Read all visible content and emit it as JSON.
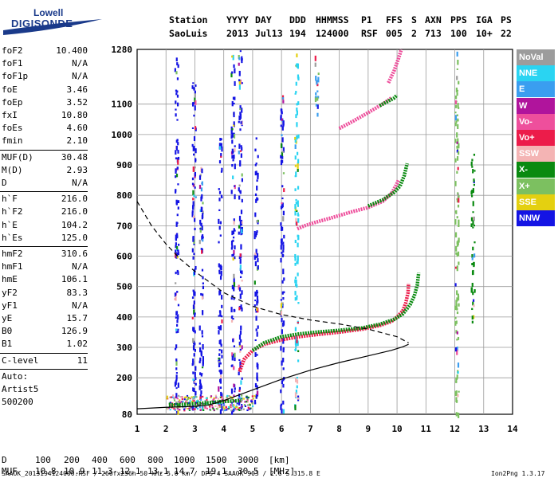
{
  "logo": {
    "line1": "Lowell",
    "line2": "DIGISONDE"
  },
  "header": {
    "row1": [
      "Station",
      "YYYY",
      "DAY",
      "DDD",
      "HHMMSS",
      "P1",
      "FFS",
      "S",
      "AXN",
      "PPS",
      "IGA",
      "PS"
    ],
    "row2": [
      "SaoLuis",
      "2013",
      "Jul13",
      "194",
      "124000",
      "RSF",
      "005",
      "2",
      "713",
      "100",
      "10+",
      "22"
    ]
  },
  "params": {
    "group1": [
      {
        "name": "foF2",
        "value": "10.400"
      },
      {
        "name": "foF1",
        "value": "N/A"
      },
      {
        "name": "foF1p",
        "value": "N/A"
      },
      {
        "name": "foE",
        "value": "3.46"
      },
      {
        "name": "foEp",
        "value": "3.52"
      },
      {
        "name": "fxI",
        "value": "10.80"
      },
      {
        "name": "foEs",
        "value": "4.60"
      },
      {
        "name": "fmin",
        "value": "2.10"
      }
    ],
    "group2": [
      {
        "name": "MUF(D)",
        "value": "30.48"
      },
      {
        "name": "M(D)",
        "value": "2.93"
      },
      {
        "name": "D",
        "value": "N/A"
      }
    ],
    "group3": [
      {
        "name": "h`F",
        "value": "216.0"
      },
      {
        "name": "h`F2",
        "value": "216.0"
      },
      {
        "name": "h`E",
        "value": "104.2"
      },
      {
        "name": "h`Es",
        "value": "125.0"
      }
    ],
    "group4": [
      {
        "name": "hmF2",
        "value": "310.6"
      },
      {
        "name": "hmF1",
        "value": "N/A"
      },
      {
        "name": "hmE",
        "value": "106.1"
      },
      {
        "name": "yF2",
        "value": "83.3"
      },
      {
        "name": "yF1",
        "value": "N/A"
      },
      {
        "name": "yE",
        "value": "15.7"
      },
      {
        "name": "B0",
        "value": "126.9"
      },
      {
        "name": "B1",
        "value": "1.02"
      }
    ],
    "clevel": {
      "name": "C-level",
      "value": "11"
    },
    "auto": [
      "Auto:",
      "Artist5",
      "500200"
    ]
  },
  "legend": [
    {
      "label": "NoVal",
      "color": "#9c9c9c"
    },
    {
      "label": "NNE",
      "color": "#2ad4f2"
    },
    {
      "label": "E",
      "color": "#3a9ef0"
    },
    {
      "label": "W",
      "color": "#b0149c"
    },
    {
      "label": "Vo-",
      "color": "#ee4f9c"
    },
    {
      "label": "Vo+",
      "color": "#ec1c4a"
    },
    {
      "label": "SSW",
      "color": "#f4b4b4"
    },
    {
      "label": "X-",
      "color": "#0a8a10"
    },
    {
      "label": "X+",
      "color": "#7cc060"
    },
    {
      "label": "SSE",
      "color": "#e4d010"
    },
    {
      "label": "NNW",
      "color": "#1414e4"
    }
  ],
  "footer": {
    "d_row": [
      "D",
      "100",
      "200",
      "400",
      "600",
      "800",
      "1000",
      "1500",
      "3000",
      "[km]"
    ],
    "muf_row": [
      "MUF",
      "10.8",
      "10.9",
      "11.3",
      "12.1",
      "13.1",
      "14.7",
      "19.1",
      "30.5",
      "[MHz]"
    ],
    "meta": "SAAOK_2013194124000.RSF / 260fx256h 50 kHz 5.0 km / DPS-4 SAAOK 903 / 2.6 S 315.8 E",
    "version": "Ion2Png 1.3.17"
  },
  "chart_data": {
    "type": "scatter",
    "xlabel": "",
    "ylabel": "",
    "xlim": [
      1,
      14
    ],
    "ylim": [
      80,
      1280
    ],
    "x_ticks": [
      1,
      2,
      3,
      4,
      5,
      6,
      7,
      8,
      9,
      10,
      11,
      12,
      13,
      14
    ],
    "y_ticks": [
      80,
      200,
      300,
      400,
      500,
      600,
      700,
      800,
      900,
      1000,
      1100,
      1280
    ],
    "traces": [
      {
        "name": "o_trace_F",
        "color": "#ec1c4a",
        "x": [
          4.55,
          4.7,
          5.0,
          5.4,
          6.0,
          6.6,
          7.2,
          8.0,
          8.8,
          9.4,
          9.8,
          10.0,
          10.2,
          10.3,
          10.38,
          10.4
        ],
        "y": [
          220,
          260,
          290,
          310,
          325,
          335,
          342,
          350,
          360,
          372,
          385,
          400,
          420,
          445,
          480,
          510
        ]
      },
      {
        "name": "x_trace_F",
        "color": "#0a8a10",
        "x": [
          5.0,
          5.4,
          6.0,
          6.6,
          7.2,
          8.0,
          8.8,
          9.4,
          9.9,
          10.2,
          10.45,
          10.6,
          10.7,
          10.75
        ],
        "y": [
          290,
          315,
          335,
          344,
          350,
          356,
          364,
          376,
          392,
          410,
          440,
          470,
          505,
          545
        ]
      },
      {
        "name": "o_trace_2hop",
        "color": "#ee4f9c",
        "x": [
          6.55,
          6.8,
          7.2,
          7.8,
          8.4,
          9.0,
          9.5,
          9.8,
          9.95,
          10.05
        ],
        "y": [
          690,
          700,
          712,
          728,
          745,
          760,
          780,
          805,
          830,
          850
        ]
      },
      {
        "name": "x_trace_2hop",
        "color": "#0a8a10",
        "x": [
          9.0,
          9.5,
          9.9,
          10.1,
          10.25,
          10.35
        ],
        "y": [
          765,
          785,
          810,
          830,
          865,
          905
        ]
      },
      {
        "name": "o_trace_3hop",
        "color": "#ee4f9c",
        "x": [
          8.0,
          8.5,
          9.0,
          9.5,
          9.8
        ],
        "y": [
          1020,
          1045,
          1072,
          1100,
          1120
        ]
      },
      {
        "name": "o_trace_3hop_tail",
        "color": "#ee4f9c",
        "x": [
          9.7,
          9.9,
          10.05,
          10.15
        ],
        "y": [
          1170,
          1210,
          1250,
          1280
        ]
      },
      {
        "name": "x_trace_3hop",
        "color": "#0a8a10",
        "x": [
          9.4,
          9.7,
          9.9,
          10.0
        ],
        "y": [
          1095,
          1110,
          1120,
          1130
        ]
      },
      {
        "name": "Es_trace",
        "color": "#0a8a10",
        "x": [
          2.1,
          2.5,
          3.0,
          3.5,
          4.0,
          4.6
        ],
        "y": [
          110,
          112,
          115,
          118,
          122,
          125
        ]
      }
    ],
    "profile_solid": {
      "x": [
        1.0,
        2.0,
        3.0,
        3.46,
        4.0,
        5.0,
        6.0,
        7.0,
        8.0,
        9.0,
        9.8,
        10.2,
        10.4
      ],
      "y": [
        98,
        103,
        106,
        110,
        125,
        160,
        195,
        225,
        250,
        272,
        290,
        302,
        310
      ]
    },
    "profile_dashed": {
      "x": [
        1.0,
        1.5,
        2.0,
        2.5,
        3.0,
        3.5,
        4.0,
        5.0,
        6.0,
        7.0,
        8.0,
        9.0,
        10.0,
        10.4
      ],
      "y": [
        780,
        700,
        640,
        590,
        550,
        515,
        480,
        435,
        408,
        390,
        377,
        360,
        335,
        315
      ]
    },
    "scatter_columns": [
      {
        "x": 2.35,
        "y0": 90,
        "y1": 1270,
        "color": "#1414e4"
      },
      {
        "x": 2.95,
        "y0": 90,
        "y1": 1200,
        "color": "#1414e4"
      },
      {
        "x": 3.2,
        "y0": 90,
        "y1": 900,
        "color": "#1414e4"
      },
      {
        "x": 3.85,
        "y0": 90,
        "y1": 1000,
        "color": "#1414e4"
      },
      {
        "x": 4.3,
        "y0": 90,
        "y1": 1280,
        "color": "#1414e4"
      },
      {
        "x": 4.55,
        "y0": 90,
        "y1": 1280,
        "color": "#1414e4"
      },
      {
        "x": 5.1,
        "y0": 90,
        "y1": 1000,
        "color": "#1414e4"
      },
      {
        "x": 6.0,
        "y0": 90,
        "y1": 1150,
        "color": "#1414e4"
      },
      {
        "x": 6.5,
        "y0": 90,
        "y1": 1270,
        "color": "#2ad4f2"
      },
      {
        "x": 7.2,
        "y0": 1050,
        "y1": 1270,
        "color": "#3a9ef0"
      },
      {
        "x": 12.05,
        "y0": 80,
        "y1": 1280,
        "color": "#7cc060"
      },
      {
        "x": 12.6,
        "y0": 380,
        "y1": 950,
        "color": "#0a8a10"
      }
    ]
  }
}
